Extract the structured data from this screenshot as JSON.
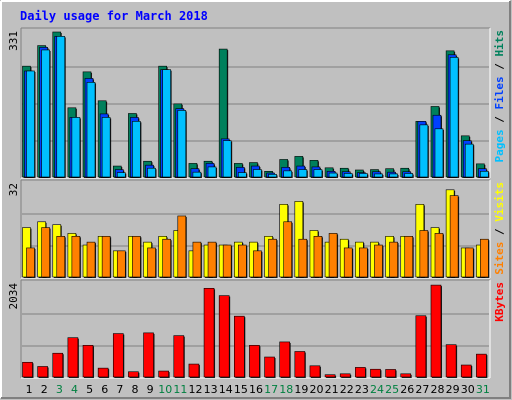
{
  "chart_data": {
    "type": "bar",
    "title": "Daily usage for March 2018",
    "categories": [
      "1",
      "2",
      "3",
      "4",
      "5",
      "6",
      "7",
      "8",
      "9",
      "10",
      "11",
      "12",
      "13",
      "14",
      "15",
      "16",
      "17",
      "18",
      "19",
      "20",
      "21",
      "22",
      "23",
      "24",
      "25",
      "26",
      "27",
      "28",
      "29",
      "30",
      "31"
    ],
    "weekend_days": [
      "3",
      "4",
      "10",
      "11",
      "17",
      "18",
      "24",
      "25",
      "31"
    ],
    "panels": [
      {
        "id": "hits-files-pages",
        "max_label": "331",
        "ymax": 331,
        "legend": [
          {
            "text": "Pages",
            "color": "#00c0ff"
          },
          {
            "text": " / ",
            "color": "#000000"
          },
          {
            "text": "Files",
            "color": "#0040ff"
          },
          {
            "text": " / ",
            "color": "#000000"
          },
          {
            "text": "Hits",
            "color": "#00805c"
          }
        ],
        "series": [
          {
            "name": "Hits",
            "color": "#00805c",
            "values": [
              253,
              300,
              331,
              158,
              240,
              174,
              25,
              145,
              36,
              253,
              167,
              31,
              36,
              292,
              31,
              33,
              13,
              40,
              47,
              38,
              21,
              20,
              16,
              17,
              19,
              20,
              127,
              161,
              288,
              94,
              30
            ]
          },
          {
            "name": "Files",
            "color": "#0040ff",
            "values": [
              242,
              296,
              321,
              136,
              225,
              144,
              17,
              136,
              27,
              245,
              156,
              19,
              31,
              87,
              22,
              25,
              9,
              22,
              25,
              23,
              13,
              12,
              10,
              12,
              11,
              12,
              127,
              141,
              279,
              83,
              19
            ]
          },
          {
            "name": "Pages",
            "color": "#00c0ff",
            "values": [
              242,
              290,
              321,
              136,
              216,
              136,
              10,
              127,
              20,
              245,
              152,
              11,
              23,
              83,
              10,
              17,
              6,
              14,
              17,
              17,
              9,
              8,
              8,
              7,
              7,
              8,
              119,
              110,
              273,
              75,
              13
            ]
          }
        ]
      },
      {
        "id": "visits-sites",
        "max_label": "32",
        "ymax": 32,
        "legend": [
          {
            "text": "Sites",
            "color": "#ff8000"
          },
          {
            "text": " / ",
            "color": "#000000"
          },
          {
            "text": "Visits",
            "color": "#ffff00"
          }
        ],
        "series": [
          {
            "name": "Visits",
            "color": "#ffff00",
            "values": [
              17,
              19,
              18,
              15,
              11,
              14,
              9,
              14,
              12,
              14,
              16,
              9,
              11,
              11,
              12,
              12,
              14,
              25,
              26,
              16,
              12,
              13,
              12,
              12,
              14,
              14,
              25,
              17,
              30,
              10,
              11
            ]
          },
          {
            "name": "Sites",
            "color": "#ff8000",
            "values": [
              10,
              17,
              14,
              14,
              12,
              14,
              9,
              14,
              10,
              13,
              21,
              12,
              12,
              11,
              11,
              9,
              13,
              19,
              13,
              14,
              15,
              10,
              10,
              11,
              12,
              14,
              16,
              15,
              28,
              10,
              13
            ]
          }
        ]
      },
      {
        "id": "kbytes",
        "max_label": "2034",
        "ymax": 2034,
        "legend": [
          {
            "text": "KBytes",
            "color": "#ff0000"
          }
        ],
        "series": [
          {
            "name": "KBytes",
            "color": "#ff0000",
            "values": [
              322,
              230,
              520,
              860,
              693,
              194,
              950,
              115,
              965,
              130,
              905,
              283,
              1940,
              1780,
              1330,
              693,
              437,
              767,
              558,
              245,
              50,
              70,
              210,
              170,
              165,
              70,
              1340,
              2010,
              707,
              262,
              500
            ]
          }
        ]
      }
    ]
  }
}
